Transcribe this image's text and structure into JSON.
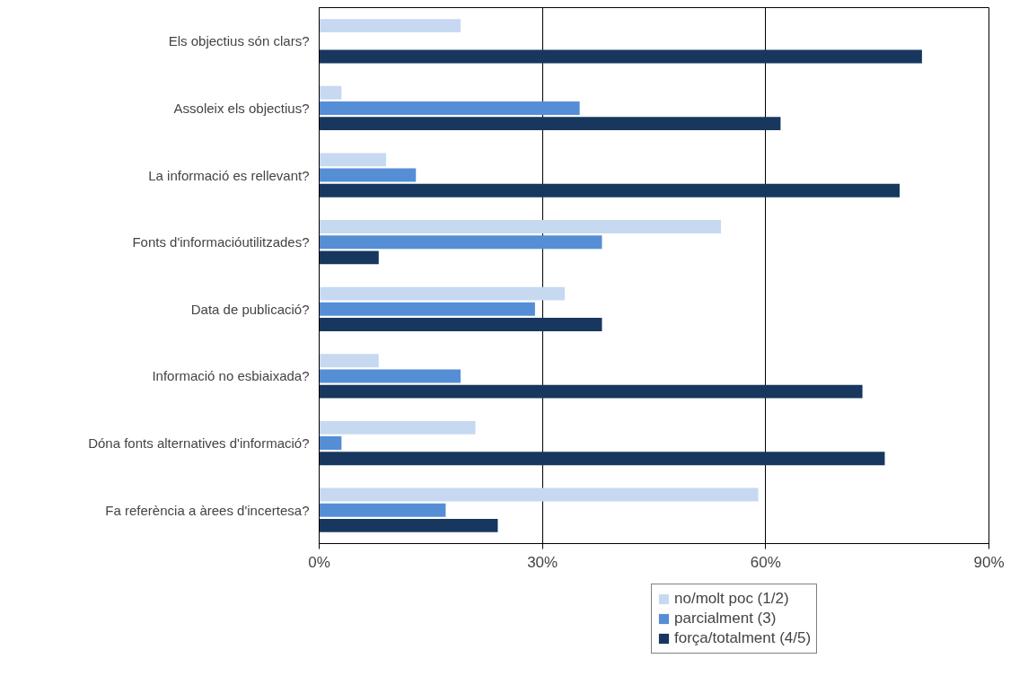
{
  "chart_data": {
    "type": "bar",
    "orientation": "horizontal",
    "categories": [
      "Els objectius són clars?",
      "Assoleix els objectius?",
      "La informació es rellevant?",
      "Fonts d'informacióutilitzades?",
      "Data de publicació?",
      "Informació no esbiaixada?",
      "Dóna fonts alternatives d'informació?",
      "Fa referència a àrees d'incertesa?"
    ],
    "series": [
      {
        "name": "no/molt poc (1/2)",
        "color": "#c6d9f1",
        "values": [
          19,
          3,
          9,
          54,
          33,
          8,
          21,
          59
        ]
      },
      {
        "name": "parcialment (3)",
        "color": "#558ed5",
        "values": [
          0,
          35,
          13,
          38,
          29,
          19,
          3,
          17
        ]
      },
      {
        "name": "força/totalment (4/5)",
        "color": "#17375e",
        "values": [
          81,
          62,
          78,
          8,
          38,
          73,
          76,
          24
        ]
      }
    ],
    "xlim": [
      0,
      90
    ],
    "xticks": [
      {
        "value": 0,
        "label": "0%"
      },
      {
        "value": 30,
        "label": "30%"
      },
      {
        "value": 60,
        "label": "60%"
      },
      {
        "value": 90,
        "label": "90%"
      }
    ],
    "grid": "x",
    "legend": "bottom"
  }
}
